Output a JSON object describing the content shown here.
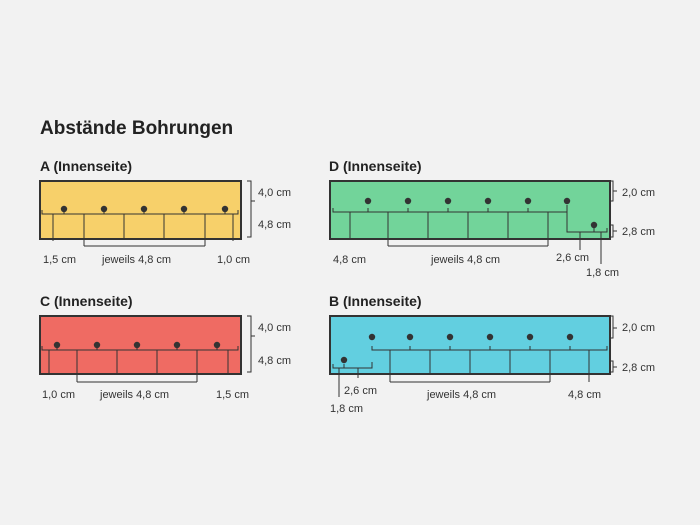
{
  "title": "Abstände Bohrungen",
  "colors": {
    "A": "#f7d06a",
    "B": "#62cfe0",
    "C": "#ef6b63",
    "D": "#72d49a",
    "stroke": "#333333"
  },
  "panels": {
    "A": {
      "label": "A (Innenseite)",
      "height_top": "4,0 cm",
      "height_bottom": "4,8 cm",
      "left_spacing": "1,5 cm",
      "repeat_spacing": "jeweils 4,8 cm",
      "right_spacing": "1,0 cm"
    },
    "C": {
      "label": "C (Innenseite)",
      "height_top": "4,0 cm",
      "height_bottom": "4,8 cm",
      "left_spacing": "1,0 cm",
      "repeat_spacing": "jeweils 4,8 cm",
      "right_spacing": "1,5 cm"
    },
    "D": {
      "label": "D (Innenseite)",
      "height_top": "2,0 cm",
      "height_bottom": "2,8 cm",
      "left_spacing": "4,8 cm",
      "repeat_spacing": "jeweils 4,8 cm",
      "offset_spacing": "2,6 cm",
      "edge_spacing": "1,8 cm"
    },
    "B": {
      "label": "B (Innenseite)",
      "height_top": "2,0 cm",
      "height_bottom": "2,8 cm",
      "edge_spacing": "1,8 cm",
      "offset_spacing": "2,6 cm",
      "repeat_spacing": "jeweils 4,8 cm",
      "right_spacing": "4,8 cm"
    }
  }
}
